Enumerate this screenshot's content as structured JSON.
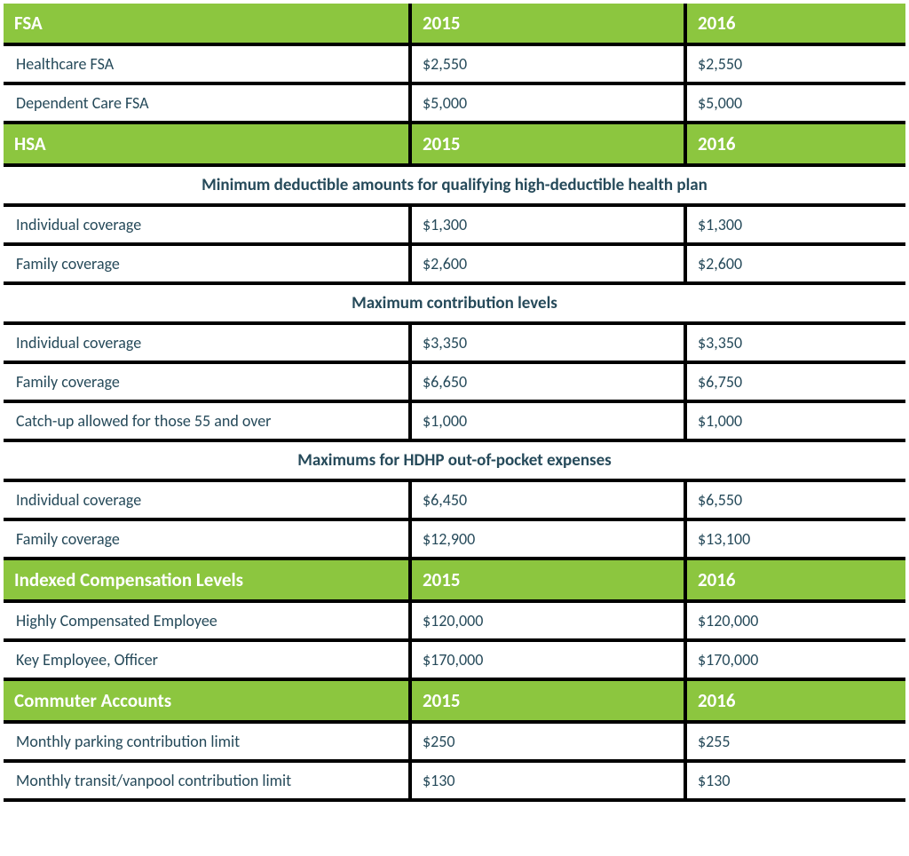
{
  "colors": {
    "header_bg": "#8cc63f",
    "header_text": "#ffffff",
    "cell_bg": "#ffffff",
    "cell_text": "#264a5a",
    "border": "#000000"
  },
  "sections": {
    "fsa": {
      "title": "FSA",
      "y2015": "2015",
      "y2016": "2016",
      "rows": [
        {
          "label": "Healthcare FSA",
          "v2015": "$2,550",
          "v2016": "$2,550"
        },
        {
          "label": "Dependent Care FSA",
          "v2015": "$5,000",
          "v2016": "$5,000"
        }
      ]
    },
    "hsa": {
      "title": "HSA",
      "y2015": "2015",
      "y2016": "2016",
      "sub1": {
        "title": "Minimum deductible amounts for qualifying high-deductible health plan",
        "rows": [
          {
            "label": "Individual coverage",
            "v2015": "$1,300",
            "v2016": "$1,300"
          },
          {
            "label": "Family coverage",
            "v2015": "$2,600",
            "v2016": "$2,600"
          }
        ]
      },
      "sub2": {
        "title": "Maximum contribution levels",
        "rows": [
          {
            "label": "Individual coverage",
            "v2015": "$3,350",
            "v2016": "$3,350"
          },
          {
            "label": "Family coverage",
            "v2015": "$6,650",
            "v2016": "$6,750"
          },
          {
            "label": "Catch-up allowed for those 55 and over",
            "v2015": "$1,000",
            "v2016": "$1,000"
          }
        ]
      },
      "sub3": {
        "title": "Maximums for HDHP out-of-pocket expenses",
        "rows": [
          {
            "label": "Individual coverage",
            "v2015": "$6,450",
            "v2016": "$6,550"
          },
          {
            "label": "Family coverage",
            "v2015": "$12,900",
            "v2016": "$13,100"
          }
        ]
      }
    },
    "indexed": {
      "title": "Indexed Compensation Levels",
      "y2015": "2015",
      "y2016": "2016",
      "rows": [
        {
          "label": "Highly Compensated Employee",
          "v2015": "$120,000",
          "v2016": "$120,000"
        },
        {
          "label": "Key Employee, Officer",
          "v2015": "$170,000",
          "v2016": "$170,000"
        }
      ]
    },
    "commuter": {
      "title": "Commuter Accounts",
      "y2015": "2015",
      "y2016": "2016",
      "rows": [
        {
          "label": "Monthly parking contribution limit",
          "v2015": "$250",
          "v2016": "$255"
        },
        {
          "label": "Monthly transit/vanpool contribution limit",
          "v2015": "$130",
          "v2016": "$130"
        }
      ]
    }
  }
}
